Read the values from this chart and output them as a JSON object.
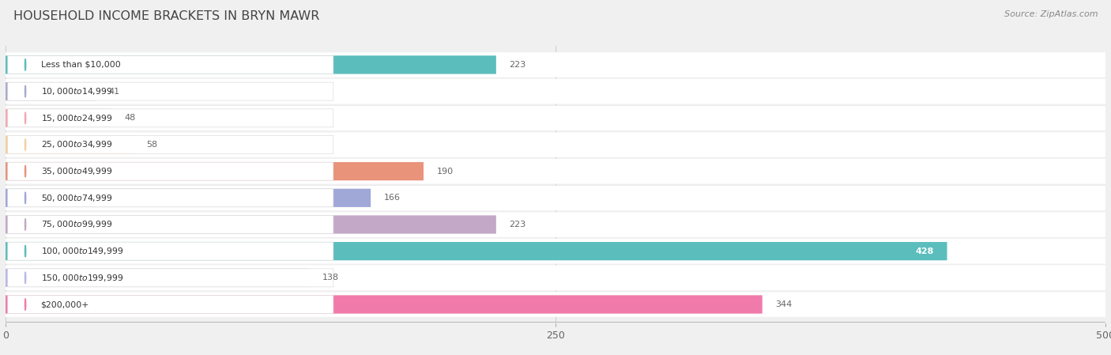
{
  "title": "HOUSEHOLD INCOME BRACKETS IN BRYN MAWR",
  "source": "Source: ZipAtlas.com",
  "categories": [
    "Less than $10,000",
    "$10,000 to $14,999",
    "$15,000 to $24,999",
    "$25,000 to $34,999",
    "$35,000 to $49,999",
    "$50,000 to $74,999",
    "$75,000 to $99,999",
    "$100,000 to $149,999",
    "$150,000 to $199,999",
    "$200,000+"
  ],
  "values": [
    223,
    41,
    48,
    58,
    190,
    166,
    223,
    428,
    138,
    344
  ],
  "bar_colors": [
    "#5BBDBC",
    "#AAAACE",
    "#F4A7B0",
    "#F5CFA0",
    "#E8937A",
    "#A0A8D8",
    "#C4A8C8",
    "#5BBDBC",
    "#B8B8E8",
    "#F07BAA"
  ],
  "xlim": [
    0,
    500
  ],
  "xticks": [
    0,
    250,
    500
  ],
  "background_color": "#f0f0f0",
  "bar_bg_color": "#e8e8e8",
  "row_bg_color": "#ffffff",
  "title_color": "#444444",
  "value_color_inside": "#ffffff",
  "value_color_outside": "#666666",
  "inside_threshold": 350
}
